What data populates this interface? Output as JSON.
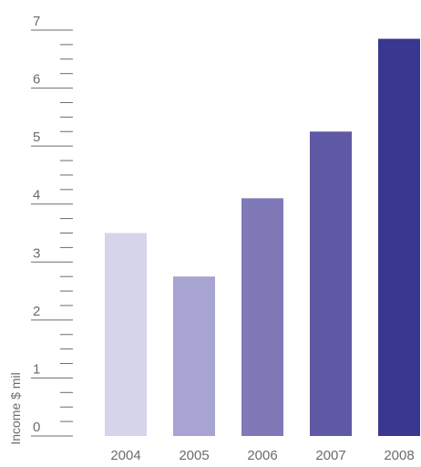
{
  "chart_data": {
    "type": "bar",
    "categories": [
      "2004",
      "2005",
      "2006",
      "2007",
      "2008"
    ],
    "values": [
      3.5,
      2.75,
      4.1,
      5.25,
      6.85
    ],
    "ylabel": "Income $ mil",
    "ylim": [
      0,
      7
    ],
    "yticks": [
      "0",
      "1",
      "2",
      "3",
      "4",
      "5",
      "6",
      "7"
    ],
    "minor_ticks_per_unit": 4,
    "bar_colors": [
      "#d6d4eb",
      "#a8a4d1",
      "#8079b8",
      "#5f58a4",
      "#39378f"
    ],
    "tick_color": "#6b6b6b",
    "grid": false
  }
}
